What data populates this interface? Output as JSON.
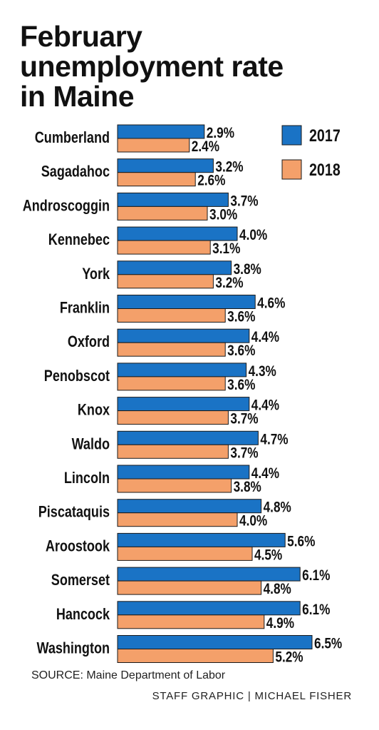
{
  "title_lines": [
    "February",
    "unemployment rate",
    "in Maine"
  ],
  "source": "SOURCE: Maine Department of Labor",
  "credit": "STAFF GRAPHIC | MICHAEL FISHER",
  "colors": {
    "series_2017": "#1a73c5",
    "series_2018": "#f4a06a",
    "text": "#111111"
  },
  "chart_data": {
    "type": "bar",
    "orientation": "horizontal",
    "categories": [
      "Cumberland",
      "Sagadahoc",
      "Androscoggin",
      "Kennebec",
      "York",
      "Franklin",
      "Oxford",
      "Penobscot",
      "Knox",
      "Waldo",
      "Lincoln",
      "Piscataquis",
      "Aroostook",
      "Somerset",
      "Hancock",
      "Washington"
    ],
    "series": [
      {
        "name": "2017",
        "values": [
          2.9,
          3.2,
          3.7,
          4.0,
          3.8,
          4.6,
          4.4,
          4.3,
          4.4,
          4.7,
          4.4,
          4.8,
          5.6,
          6.1,
          6.1,
          6.5
        ],
        "labels": [
          "2.9%",
          "3.2%",
          "3.7%",
          "4.0%",
          "3.8%",
          "4.6%",
          "4.4%",
          "4.3%",
          "4.4%",
          "4.7%",
          "4.4%",
          "4.8%",
          "5.6%",
          "6.1%",
          "6.1%",
          "6.5%"
        ]
      },
      {
        "name": "2018",
        "values": [
          2.4,
          2.6,
          3.0,
          3.1,
          3.2,
          3.6,
          3.6,
          3.6,
          3.7,
          3.7,
          3.8,
          4.0,
          4.5,
          4.8,
          4.9,
          5.2
        ],
        "labels": [
          "2.4%",
          "2.6%",
          "3.0%",
          "3.1%",
          "3.2%",
          "3.6%",
          "3.6%",
          "3.6%",
          "3.7%",
          "3.7%",
          "3.8%",
          "4.0%",
          "4.5%",
          "4.8%",
          "4.9%",
          "5.2%"
        ]
      }
    ],
    "legend_position": "top-right",
    "grid": false,
    "xlim": [
      0,
      6.5
    ]
  }
}
